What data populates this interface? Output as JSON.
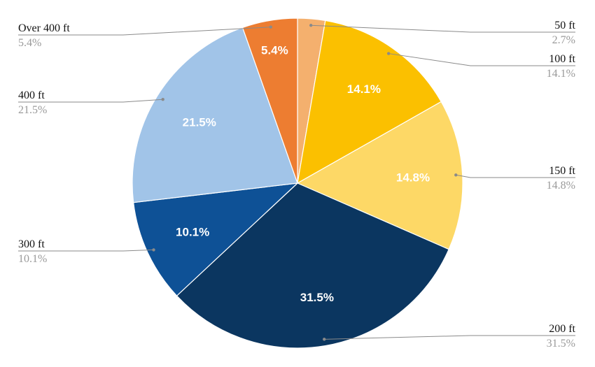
{
  "chart_data": {
    "type": "pie",
    "title": "",
    "start_angle_deg": 0,
    "direction": "clockwise",
    "slices": [
      {
        "label": "50 ft",
        "value": 2.7,
        "display": "2.7%",
        "data_label": "",
        "color": "#F4B06E",
        "label_side": "right"
      },
      {
        "label": "100 ft",
        "value": 14.1,
        "display": "14.1%",
        "data_label": "14.1%",
        "color": "#FBC000",
        "label_side": "right"
      },
      {
        "label": "150 ft",
        "value": 14.8,
        "display": "14.8%",
        "data_label": "14.8%",
        "color": "#FDD866",
        "label_side": "right"
      },
      {
        "label": "200 ft",
        "value": 31.5,
        "display": "31.5%",
        "data_label": "31.5%",
        "color": "#0B3660",
        "label_side": "right"
      },
      {
        "label": "300 ft",
        "value": 10.1,
        "display": "10.1%",
        "data_label": "10.1%",
        "color": "#0E5196",
        "label_side": "left"
      },
      {
        "label": "400 ft",
        "value": 21.5,
        "display": "21.5%",
        "data_label": "21.5%",
        "color": "#A1C4E8",
        "label_side": "left"
      },
      {
        "label": "Over 400 ft",
        "value": 5.4,
        "display": "5.4%",
        "data_label": "5.4%",
        "color": "#ED7D31",
        "label_side": "left"
      }
    ]
  }
}
